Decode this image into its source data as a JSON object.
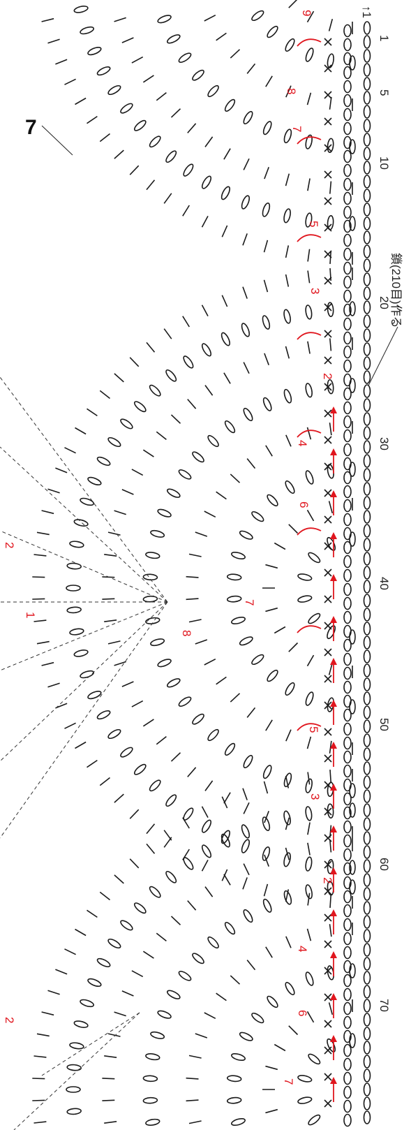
{
  "diagram": {
    "start_marker": "↑1",
    "callout_label": "7",
    "foundation_note": "鎖(210目)作る",
    "count_labels": [
      "1",
      "5",
      "10",
      "20",
      "30",
      "40",
      "50",
      "60",
      "70"
    ],
    "row_labels_top": [
      {
        "id": "r9",
        "text": "9"
      },
      {
        "id": "r8a",
        "text": "8"
      },
      {
        "id": "r7a",
        "text": "7"
      },
      {
        "id": "r5a",
        "text": "5"
      },
      {
        "id": "r3a",
        "text": "3"
      },
      {
        "id": "r2a",
        "text": "2"
      },
      {
        "id": "r4a",
        "text": "4"
      },
      {
        "id": "r6a",
        "text": "6"
      },
      {
        "id": "r7b",
        "text": "7"
      },
      {
        "id": "r8b",
        "text": "8"
      },
      {
        "id": "r1a",
        "text": "1"
      },
      {
        "id": "r5b",
        "text": "5"
      },
      {
        "id": "r3b",
        "text": "3"
      },
      {
        "id": "r2b",
        "text": "2"
      },
      {
        "id": "r4b",
        "text": "4"
      },
      {
        "id": "r6b",
        "text": "6"
      },
      {
        "id": "r7c",
        "text": "7"
      },
      {
        "id": "r2c",
        "text": "2"
      },
      {
        "id": "r2d",
        "text": "2"
      }
    ]
  }
}
